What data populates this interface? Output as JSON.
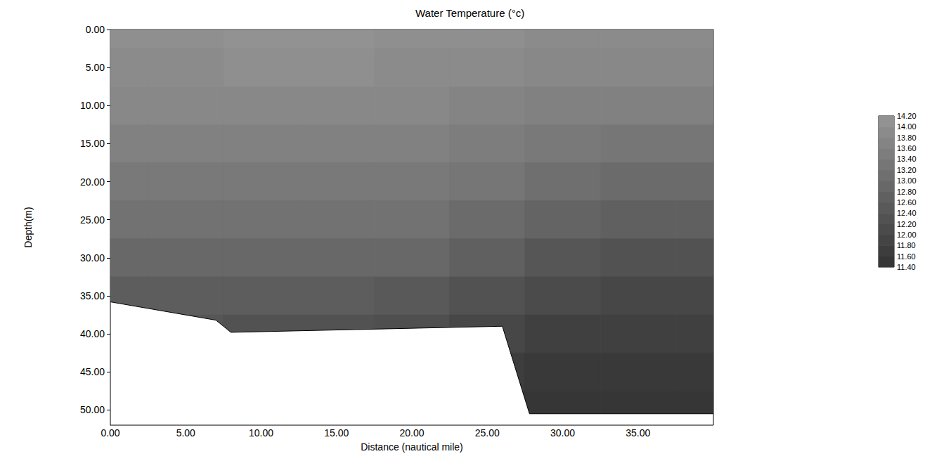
{
  "chart_data": {
    "type": "heatmap",
    "title": "Water Temperature (°c)",
    "x_label": "Distance (nautical mile)",
    "y_label": "Depth(m)",
    "x": [
      0,
      5,
      10,
      15,
      20,
      25,
      30,
      35,
      40
    ],
    "depths": [
      0,
      5,
      10,
      15,
      20,
      25,
      30,
      35,
      40,
      45,
      50
    ],
    "cells": [
      [
        14.0,
        14.0,
        14.1,
        14.1,
        14.0,
        14.0,
        13.9,
        13.9,
        13.9
      ],
      [
        13.9,
        13.9,
        14.0,
        14.0,
        13.9,
        13.9,
        13.8,
        13.8,
        13.8
      ],
      [
        13.8,
        13.8,
        13.8,
        13.8,
        13.8,
        13.7,
        13.6,
        13.6,
        13.6
      ],
      [
        13.6,
        13.6,
        13.6,
        13.6,
        13.6,
        13.5,
        13.4,
        13.3,
        13.3
      ],
      [
        13.4,
        13.4,
        13.4,
        13.4,
        13.4,
        13.3,
        13.1,
        13.0,
        13.0
      ],
      [
        13.2,
        13.2,
        13.2,
        13.2,
        13.2,
        13.0,
        12.8,
        12.7,
        12.7
      ],
      [
        12.9,
        12.9,
        12.9,
        12.9,
        12.9,
        12.7,
        12.4,
        12.3,
        12.3
      ],
      [
        12.6,
        12.6,
        12.6,
        12.6,
        12.5,
        12.3,
        12.1,
        12.0,
        12.0
      ],
      [
        null,
        12.4,
        12.3,
        12.3,
        12.2,
        12.0,
        11.8,
        11.8,
        11.8
      ],
      [
        null,
        null,
        null,
        null,
        null,
        11.7,
        11.6,
        11.6,
        11.6
      ],
      [
        null,
        null,
        null,
        null,
        null,
        11.6,
        11.5,
        11.5,
        11.5
      ]
    ],
    "xlim": [
      0,
      40
    ],
    "ylim": [
      0,
      52
    ],
    "xticks": [
      {
        "value": 0,
        "label": "0.00"
      },
      {
        "value": 5,
        "label": "5.00"
      },
      {
        "value": 10,
        "label": "10.00"
      },
      {
        "value": 15,
        "label": "15.00"
      },
      {
        "value": 20,
        "label": "20.00"
      },
      {
        "value": 25,
        "label": "25.00"
      },
      {
        "value": 30,
        "label": "30.00"
      },
      {
        "value": 35,
        "label": "35.00"
      }
    ],
    "yticks": [
      {
        "value": 0,
        "label": "0.00"
      },
      {
        "value": 5,
        "label": "5.00"
      },
      {
        "value": 10,
        "label": "10.00"
      },
      {
        "value": 15,
        "label": "15.00"
      },
      {
        "value": 20,
        "label": "20.00"
      },
      {
        "value": 25,
        "label": "25.00"
      },
      {
        "value": 30,
        "label": "30.00"
      },
      {
        "value": 35,
        "label": "35.00"
      },
      {
        "value": 40,
        "label": "40.00"
      },
      {
        "value": 45,
        "label": "45.00"
      },
      {
        "value": 50,
        "label": "50.00"
      }
    ],
    "seabed": {
      "x": [
        0,
        7,
        8,
        26,
        27.8,
        40
      ],
      "depth": [
        35.8,
        38.2,
        39.8,
        39,
        50.5,
        50.5
      ]
    },
    "color_bar": {
      "range": [
        11.4,
        14.2
      ],
      "ticks": [
        {
          "value": 11.4,
          "label": "11.40"
        },
        {
          "value": 11.6,
          "label": "11.60"
        },
        {
          "value": 11.8,
          "label": "11.80"
        },
        {
          "value": 12.0,
          "label": "12.00"
        },
        {
          "value": 12.2,
          "label": "12.20"
        },
        {
          "value": 12.4,
          "label": "12.40"
        },
        {
          "value": 12.6,
          "label": "12.60"
        },
        {
          "value": 12.8,
          "label": "12.80"
        },
        {
          "value": 13.0,
          "label": "13.00"
        },
        {
          "value": 13.2,
          "label": "13.20"
        },
        {
          "value": 13.4,
          "label": "13.40"
        },
        {
          "value": 13.6,
          "label": "13.60"
        },
        {
          "value": 13.8,
          "label": "13.80"
        },
        {
          "value": 14.0,
          "label": "14.00"
        },
        {
          "value": 14.2,
          "label": "14.20"
        }
      ]
    }
  }
}
